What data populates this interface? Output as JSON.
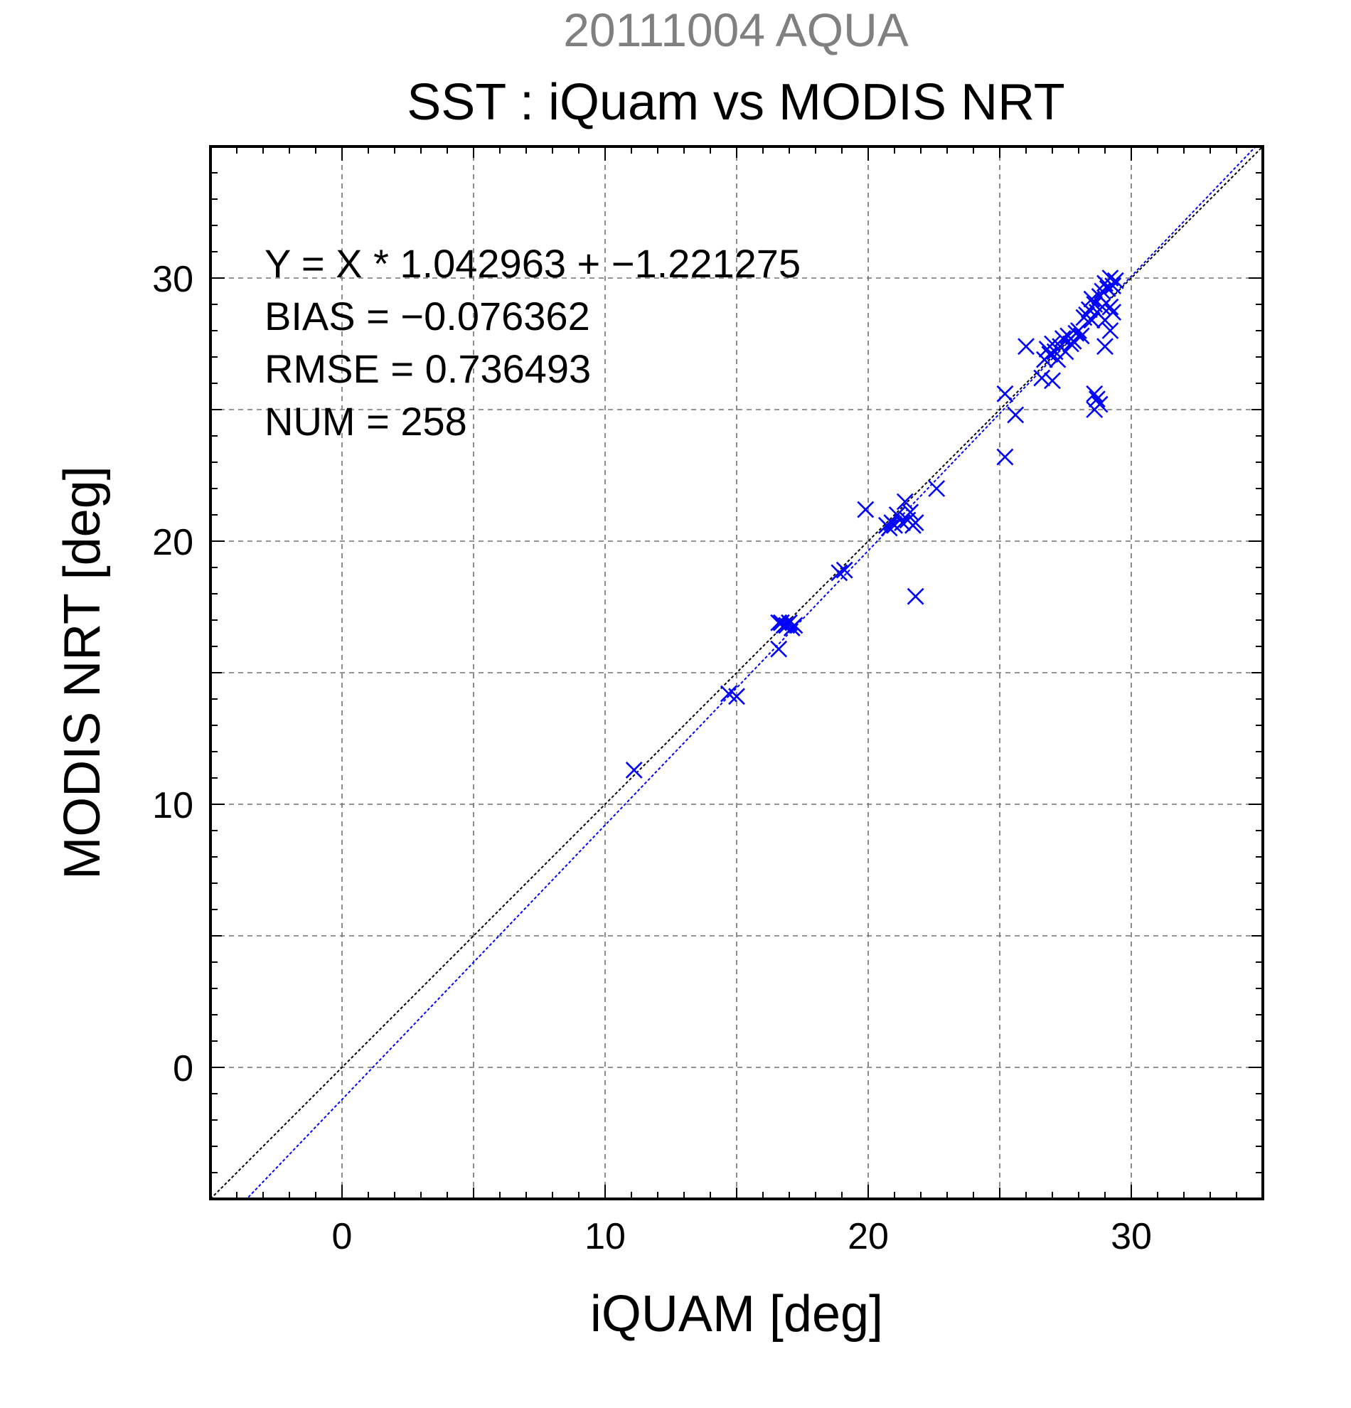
{
  "chart_data": {
    "type": "scatter",
    "suptitle": "20111004 AQUA",
    "title": "SST : iQuam vs MODIS NRT",
    "xlabel": "iQUAM [deg]",
    "ylabel": "MODIS NRT [deg]",
    "xlim": [
      -5,
      35
    ],
    "ylim": [
      -5,
      35
    ],
    "xticks": [
      0,
      10,
      20,
      30
    ],
    "yticks": [
      0,
      10,
      20,
      30
    ],
    "minor_tick_step": 1,
    "grid_step": 5,
    "grid": true,
    "stats_lines": [
      "Y = X * 1.042963 + −1.221275",
      "BIAS = −0.076362",
      "RMSE = 0.736493",
      "NUM = 258"
    ],
    "fit": {
      "slope": 1.042963,
      "intercept": -1.221275,
      "color": "#0000ff"
    },
    "identity_line_color": "#000000",
    "marker_color": "#0000ff",
    "marker": "x",
    "points": [
      [
        11.1,
        11.3
      ],
      [
        14.7,
        14.2
      ],
      [
        15.0,
        14.1
      ],
      [
        16.6,
        15.9
      ],
      [
        16.6,
        16.9
      ],
      [
        16.7,
        16.9
      ],
      [
        16.8,
        16.8
      ],
      [
        16.9,
        16.8
      ],
      [
        17.0,
        16.9
      ],
      [
        17.1,
        16.7
      ],
      [
        17.2,
        16.8
      ],
      [
        18.9,
        18.8
      ],
      [
        19.1,
        18.9
      ],
      [
        19.9,
        21.2
      ],
      [
        20.7,
        20.6
      ],
      [
        20.8,
        20.5
      ],
      [
        20.9,
        20.7
      ],
      [
        21.0,
        20.6
      ],
      [
        21.1,
        21.0
      ],
      [
        21.3,
        20.7
      ],
      [
        21.4,
        21.5
      ],
      [
        21.5,
        20.8
      ],
      [
        21.6,
        21.1
      ],
      [
        21.7,
        20.6
      ],
      [
        21.8,
        20.7
      ],
      [
        21.8,
        17.9
      ],
      [
        22.6,
        22.0
      ],
      [
        25.2,
        25.6
      ],
      [
        25.2,
        23.2
      ],
      [
        25.6,
        24.8
      ],
      [
        26.0,
        27.4
      ],
      [
        26.6,
        26.2
      ],
      [
        26.7,
        26.9
      ],
      [
        26.8,
        27.3
      ],
      [
        26.9,
        27.1
      ],
      [
        27.0,
        26.1
      ],
      [
        27.0,
        27.5
      ],
      [
        27.1,
        27.2
      ],
      [
        27.2,
        26.9
      ],
      [
        27.3,
        27.4
      ],
      [
        27.4,
        27.7
      ],
      [
        27.5,
        27.2
      ],
      [
        27.6,
        27.8
      ],
      [
        27.7,
        27.5
      ],
      [
        27.8,
        27.6
      ],
      [
        27.9,
        27.9
      ],
      [
        28.0,
        28.0
      ],
      [
        28.1,
        27.8
      ],
      [
        28.2,
        28.5
      ],
      [
        28.3,
        28.6
      ],
      [
        28.4,
        28.8
      ],
      [
        28.5,
        28.4
      ],
      [
        28.6,
        29.0
      ],
      [
        28.7,
        28.7
      ],
      [
        28.8,
        29.3
      ],
      [
        28.9,
        29.5
      ],
      [
        29.0,
        29.8
      ],
      [
        29.1,
        29.6
      ],
      [
        29.2,
        30.0
      ],
      [
        29.3,
        29.7
      ],
      [
        29.4,
        29.9
      ],
      [
        28.5,
        29.2
      ],
      [
        28.9,
        28.9
      ],
      [
        29.0,
        28.4
      ],
      [
        29.2,
        28.9
      ],
      [
        29.3,
        28.7
      ],
      [
        28.6,
        25.6
      ],
      [
        28.7,
        25.4
      ],
      [
        28.6,
        25.0
      ],
      [
        28.8,
        25.2
      ],
      [
        29.0,
        27.4
      ],
      [
        29.2,
        28.0
      ]
    ]
  }
}
